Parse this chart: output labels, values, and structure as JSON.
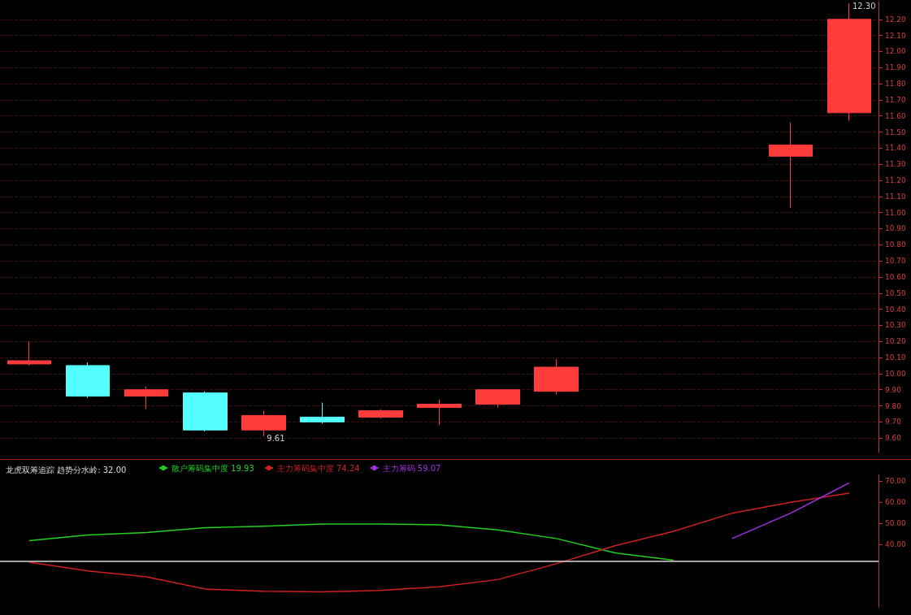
{
  "chart_data": [
    {
      "type": "candlestick",
      "categories": [
        null,
        null,
        null,
        null,
        null,
        null,
        null,
        null,
        null,
        null,
        null,
        null,
        null,
        null,
        null
      ],
      "ohlc": [
        [
          10.06,
          10.2,
          10.05,
          10.08
        ],
        [
          10.05,
          10.07,
          9.85,
          9.86
        ],
        [
          9.86,
          9.92,
          9.78,
          9.9
        ],
        [
          9.88,
          9.89,
          9.64,
          9.65
        ],
        [
          9.65,
          9.77,
          9.61,
          9.74
        ],
        [
          9.73,
          9.82,
          9.69,
          9.7
        ],
        [
          9.73,
          9.78,
          9.72,
          9.77
        ],
        [
          9.79,
          9.84,
          9.68,
          9.81
        ],
        [
          9.81,
          9.9,
          9.79,
          9.9
        ],
        [
          9.89,
          10.09,
          9.87,
          10.04
        ],
        null,
        null,
        null,
        [
          11.35,
          11.56,
          11.03,
          11.42
        ],
        [
          11.62,
          12.3,
          11.57,
          12.2
        ]
      ],
      "colors": [
        "#ff3b3b",
        "#54ffff",
        "#ff3b3b",
        "#54ffff",
        "#ff3b3b",
        "#54ffff",
        "#ff3b3b",
        "#ff3b3b",
        "#ff3b3b",
        "#ff3b3b",
        null,
        null,
        null,
        "#ff3b3b",
        "#ff3b3b"
      ],
      "annotations": [
        "9.61",
        "12.30"
      ],
      "ylim": [
        9.51,
        12.31
      ],
      "yticks": [
        {
          "value": 9.6,
          "label": "9.60"
        },
        {
          "value": 9.7,
          "label": "9.70"
        },
        {
          "value": 9.8,
          "label": "9.80"
        },
        {
          "value": 9.9,
          "label": "9.90"
        },
        {
          "value": 10.0,
          "label": "10.00"
        },
        {
          "value": 10.1,
          "label": "10.10"
        },
        {
          "value": 10.2,
          "label": "10.20"
        },
        {
          "value": 10.3,
          "label": "10.30"
        },
        {
          "value": 10.4,
          "label": "10.40"
        },
        {
          "value": 10.5,
          "label": "10.50"
        },
        {
          "value": 10.6,
          "label": "10.60"
        },
        {
          "value": 10.7,
          "label": "10.70"
        },
        {
          "value": 10.8,
          "label": "10.80"
        },
        {
          "value": 10.9,
          "label": "10.90"
        },
        {
          "value": 11.0,
          "label": "11.00"
        },
        {
          "value": 11.1,
          "label": "11.10"
        },
        {
          "value": 11.2,
          "label": "11.20"
        },
        {
          "value": 11.3,
          "label": "11.30"
        },
        {
          "value": 11.4,
          "label": "11.40"
        },
        {
          "value": 11.5,
          "label": "11.50"
        },
        {
          "value": 11.6,
          "label": "11.60"
        },
        {
          "value": 11.7,
          "label": "11.70"
        },
        {
          "value": 11.8,
          "label": "11.80"
        },
        {
          "value": 11.9,
          "label": "11.90"
        },
        {
          "value": 12.0,
          "label": "12.00"
        },
        {
          "value": 12.1,
          "label": "12.10"
        },
        {
          "value": 12.2,
          "label": "12.20"
        }
      ],
      "grid": "y"
    },
    {
      "type": "line",
      "categories": [
        null,
        null,
        null,
        null,
        null,
        null,
        null,
        null,
        null,
        null,
        null,
        null,
        null,
        null,
        null
      ],
      "series": [
        {
          "name": "散户筹码集中度 19.93",
          "color": "#22d022",
          "values": [
            41.7,
            44.4,
            45.5,
            47.8,
            48.5,
            49.6,
            49.6,
            49.2,
            46.8,
            42.7,
            35.9,
            32.5,
            null,
            null,
            null
          ]
        },
        {
          "name": "主力筹码集中度 74.24",
          "color": "#d02020",
          "values": [
            31.5,
            27.4,
            24.6,
            18.8,
            17.8,
            17.5,
            18.2,
            19.9,
            23.3,
            30.8,
            39.3,
            46.1,
            54.7,
            59.8,
            64.2
          ]
        },
        {
          "name": "主力筹码 59.07",
          "color": "#a030e0",
          "values": [
            null,
            null,
            null,
            null,
            null,
            null,
            null,
            null,
            null,
            null,
            null,
            null,
            42.7,
            54.7,
            69.0
          ]
        }
      ],
      "title": "龙虎双筹追踪 趋势分水岭: 32.00",
      "ref_lines": [
        {
          "axis": "y",
          "value": 32,
          "color": "#d8d8d8"
        }
      ],
      "legend": "top left",
      "marker": "none",
      "line_style": "solid",
      "ylim": [
        10,
        73
      ],
      "yticks": [
        {
          "value": 40,
          "label": "40.00"
        },
        {
          "value": 50,
          "label": "50.00"
        },
        {
          "value": 60,
          "label": "60.00"
        },
        {
          "value": 70,
          "label": "70.00"
        }
      ],
      "grid": false
    }
  ]
}
